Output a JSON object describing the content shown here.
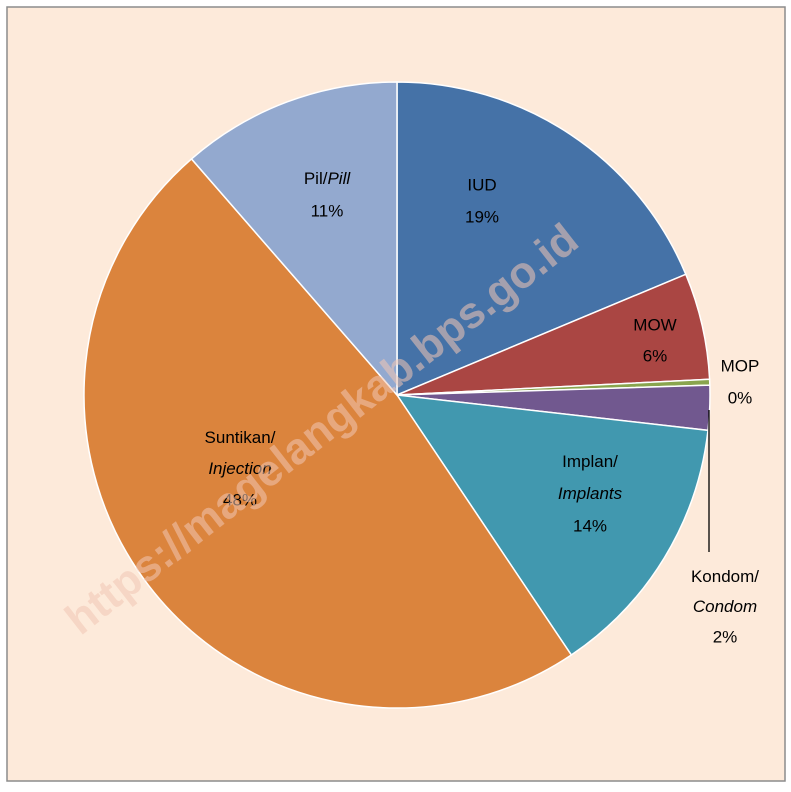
{
  "chart_data": {
    "type": "pie",
    "categories": [
      "IUD",
      "MOW",
      "MOP",
      "Kondom/Condom",
      "Implan/Implants",
      "Suntikan/Injection",
      "Pil/Pill"
    ],
    "values": [
      18.7,
      5.5,
      0.3,
      2.3,
      13.8,
      48,
      11.4
    ],
    "value_labels": [
      "19%",
      "6%",
      "0%",
      "2%",
      "14%",
      "48%",
      "11%"
    ],
    "colors": [
      "#4572a7",
      "#aa4643",
      "#89a54e",
      "#71588f",
      "#4198af",
      "#db843d",
      "#93a9cf"
    ],
    "watermark": "https://magelangkab.bps.go.id"
  }
}
